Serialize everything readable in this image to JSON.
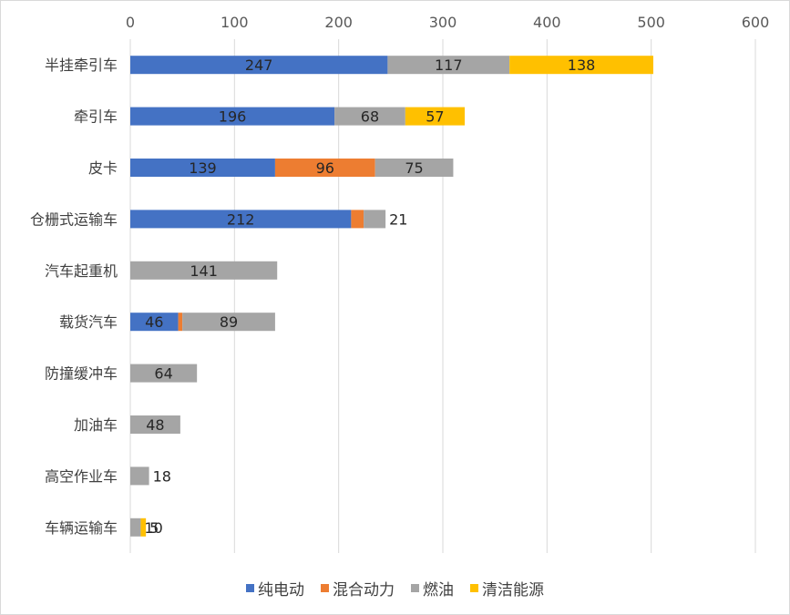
{
  "chart_data": {
    "type": "bar",
    "orientation": "horizontal",
    "stacked": true,
    "title": "",
    "xlabel": "",
    "ylabel": "",
    "xlim": [
      0,
      600
    ],
    "x_ticks": [
      "0",
      "100",
      "200",
      "300",
      "400",
      "500",
      "600"
    ],
    "x_axis_position": "top",
    "grid": true,
    "legend_position": "bottom",
    "categories": [
      "半挂牵引车",
      "牵引车",
      "皮卡",
      "仓栅式运输车",
      "汽车起重机",
      "载货汽车",
      "防撞缓冲车",
      "加油车",
      "高空作业车",
      "车辆运输车"
    ],
    "series": [
      {
        "name": "纯电动",
        "color": "#4472c4",
        "values": [
          247,
          196,
          139,
          212,
          0,
          46,
          0,
          0,
          0,
          0
        ]
      },
      {
        "name": "混合动力",
        "color": "#ed7d31",
        "values": [
          0,
          0,
          96,
          12,
          0,
          4,
          0,
          0,
          0,
          0
        ]
      },
      {
        "name": "燃油",
        "color": "#a5a5a5",
        "values": [
          117,
          68,
          75,
          21,
          141,
          89,
          64,
          48,
          18,
          10
        ]
      },
      {
        "name": "清洁能源",
        "color": "#ffc000",
        "values": [
          138,
          57,
          0,
          0,
          0,
          0,
          0,
          0,
          0,
          5
        ]
      }
    ]
  }
}
